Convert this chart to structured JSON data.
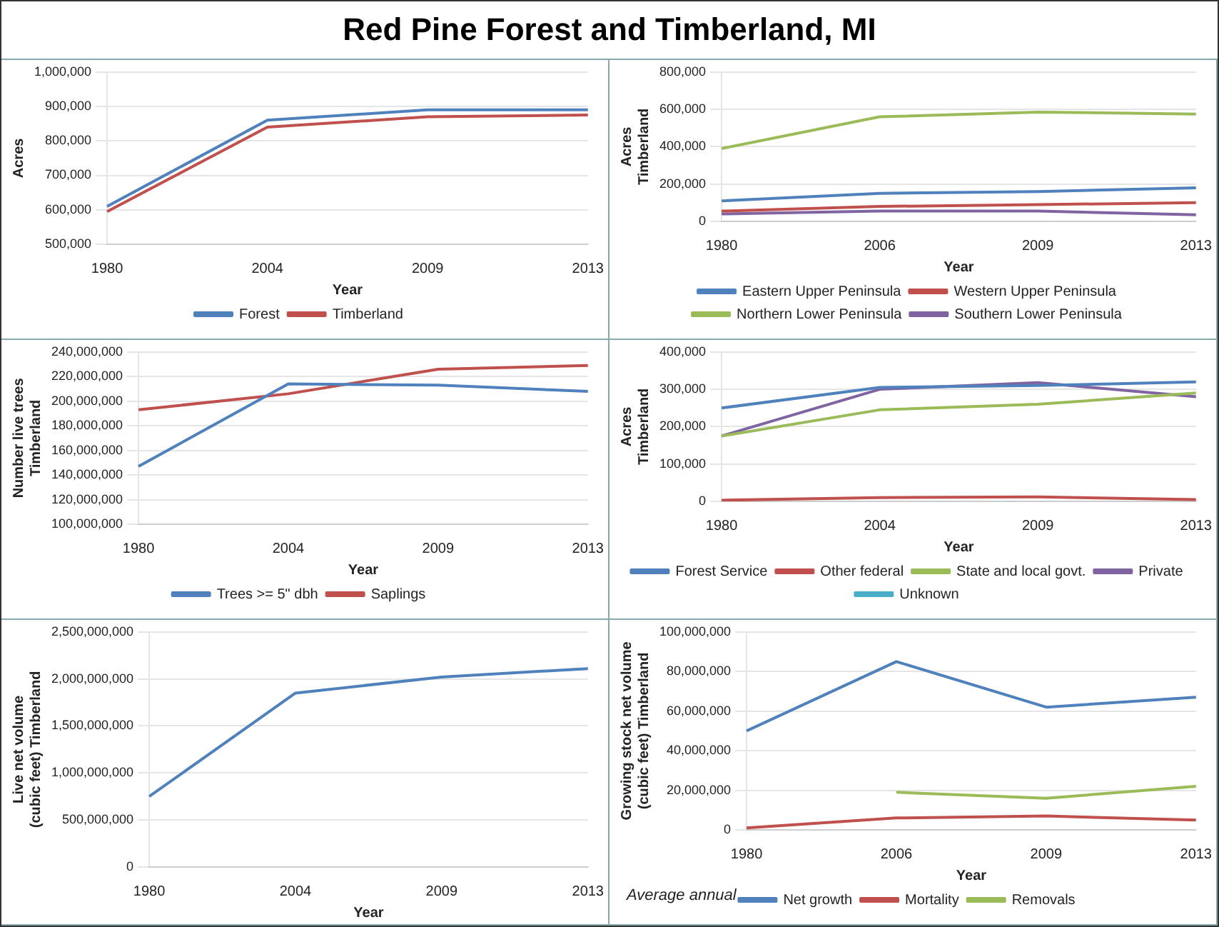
{
  "chart_data": [
    {
      "type": "line",
      "title": "Red Pine Forest and Timberland, MI",
      "categories": [
        "1980",
        "2004",
        "2009",
        "2013"
      ],
      "xlabel": "Year",
      "ylabel": "Acres",
      "ylim": [
        500000,
        1000000
      ],
      "yticks": [
        {
          "value": 500000,
          "label": "500,000"
        },
        {
          "value": 600000,
          "label": "600,000"
        },
        {
          "value": 700000,
          "label": "700,000"
        },
        {
          "value": 800000,
          "label": "800,000"
        },
        {
          "value": 900000,
          "label": "900,000"
        },
        {
          "value": 1000000,
          "label": "1,000,000"
        }
      ],
      "grid": "y",
      "legend": "bottom",
      "marker": "none",
      "series": [
        {
          "name": "Forest",
          "color": "#4f81bd",
          "values": [
            610000,
            860000,
            890000,
            890000
          ]
        },
        {
          "name": "Timberland",
          "color": "#c0504d",
          "values": [
            595000,
            840000,
            870000,
            875000
          ]
        }
      ]
    },
    {
      "type": "line",
      "categories": [
        "1980",
        "2006",
        "2009",
        "2013"
      ],
      "xlabel": "Year",
      "ylabel": "Acres\nTimberland",
      "ylim": [
        0,
        800000
      ],
      "yticks": [
        {
          "value": 0,
          "label": "0"
        },
        {
          "value": 200000,
          "label": "200,000"
        },
        {
          "value": 400000,
          "label": "400,000"
        },
        {
          "value": 600000,
          "label": "600,000"
        },
        {
          "value": 800000,
          "label": "800,000"
        }
      ],
      "grid": "y",
      "legend": "bottom",
      "marker": "none",
      "series": [
        {
          "name": "Eastern Upper Peninsula",
          "color": "#4f81bd",
          "values": [
            110000,
            150000,
            160000,
            180000
          ]
        },
        {
          "name": "Western Upper Peninsula",
          "color": "#c0504d",
          "values": [
            55000,
            80000,
            90000,
            100000
          ]
        },
        {
          "name": "Northern Lower Peninsula",
          "color": "#9bbb59",
          "values": [
            390000,
            560000,
            585000,
            575000
          ]
        },
        {
          "name": "Southern Lower Peninsula",
          "color": "#8064a2",
          "values": [
            40000,
            55000,
            55000,
            35000
          ]
        }
      ]
    },
    {
      "type": "line",
      "categories": [
        "1980",
        "2004",
        "2009",
        "2013"
      ],
      "xlabel": "Year",
      "ylabel": "Number live trees\nTimberland",
      "ylim": [
        100000000,
        240000000
      ],
      "yticks": [
        {
          "value": 100000000,
          "label": "100,000,000"
        },
        {
          "value": 120000000,
          "label": "120,000,000"
        },
        {
          "value": 140000000,
          "label": "140,000,000"
        },
        {
          "value": 160000000,
          "label": "160,000,000"
        },
        {
          "value": 180000000,
          "label": "180,000,000"
        },
        {
          "value": 200000000,
          "label": "200,000,000"
        },
        {
          "value": 220000000,
          "label": "220,000,000"
        },
        {
          "value": 240000000,
          "label": "240,000,000"
        }
      ],
      "grid": "y",
      "legend": "bottom",
      "marker": "none",
      "series": [
        {
          "name": "Trees >= 5\" dbh",
          "color": "#4f81bd",
          "values": [
            147000000,
            214000000,
            213000000,
            208000000
          ]
        },
        {
          "name": "Saplings",
          "color": "#c0504d",
          "values": [
            193000000,
            206000000,
            226000000,
            229000000
          ]
        }
      ]
    },
    {
      "type": "line",
      "categories": [
        "1980",
        "2004",
        "2009",
        "2013"
      ],
      "xlabel": "Year",
      "ylabel": "Acres\nTimberland",
      "ylim": [
        0,
        400000
      ],
      "yticks": [
        {
          "value": 0,
          "label": "0"
        },
        {
          "value": 100000,
          "label": "100,000"
        },
        {
          "value": 200000,
          "label": "200,000"
        },
        {
          "value": 300000,
          "label": "300,000"
        },
        {
          "value": 400000,
          "label": "400,000"
        }
      ],
      "grid": "y",
      "legend": "bottom",
      "marker": "none",
      "series": [
        {
          "name": "Forest Service",
          "color": "#4f81bd",
          "values": [
            250000,
            305000,
            310000,
            320000
          ]
        },
        {
          "name": "Other federal",
          "color": "#c0504d",
          "values": [
            3000,
            10000,
            12000,
            5000
          ]
        },
        {
          "name": "State and local govt.",
          "color": "#9bbb59",
          "values": [
            175000,
            245000,
            260000,
            290000
          ]
        },
        {
          "name": "Private",
          "color": "#8064a2",
          "values": [
            175000,
            300000,
            318000,
            280000
          ]
        },
        {
          "name": "Unknown",
          "color": "#4bacc6",
          "values": [
            null,
            null,
            null,
            null
          ]
        }
      ]
    },
    {
      "type": "line",
      "categories": [
        "1980",
        "2004",
        "2009",
        "2013"
      ],
      "xlabel": "Year",
      "ylabel": "Live net volume\n(cubic feet) Timberland",
      "ylim": [
        0,
        2500000000
      ],
      "yticks": [
        {
          "value": 0,
          "label": "0"
        },
        {
          "value": 500000000,
          "label": "500,000,000"
        },
        {
          "value": 1000000000,
          "label": "1,000,000,000"
        },
        {
          "value": 1500000000,
          "label": "1,500,000,000"
        },
        {
          "value": 2000000000,
          "label": "2,000,000,000"
        },
        {
          "value": 2500000000,
          "label": "2,500,000,000"
        }
      ],
      "grid": "y",
      "legend": false,
      "marker": "none",
      "series": [
        {
          "color": "#4f81bd",
          "values": [
            750000000,
            1850000000,
            2020000000,
            2110000000
          ]
        }
      ]
    },
    {
      "type": "line",
      "categories": [
        "1980",
        "2006",
        "2009",
        "2013"
      ],
      "xlabel": "Year",
      "ylabel": "Growing stock net volume\n(cubic feet) Timberland",
      "ylim": [
        0,
        100000000
      ],
      "yticks": [
        {
          "value": 0,
          "label": "0"
        },
        {
          "value": 20000000,
          "label": "20,000,000"
        },
        {
          "value": 40000000,
          "label": "40,000,000"
        },
        {
          "value": 60000000,
          "label": "60,000,000"
        },
        {
          "value": 80000000,
          "label": "80,000,000"
        },
        {
          "value": 100000000,
          "label": "100,000,000"
        }
      ],
      "grid": "y",
      "legend": "bottom",
      "marker": "none",
      "annotations": [
        "Average annual"
      ],
      "series": [
        {
          "name": "Net growth",
          "color": "#4f81bd",
          "values": [
            50000000,
            85000000,
            62000000,
            67000000
          ]
        },
        {
          "name": "Mortality",
          "color": "#c0504d",
          "values": [
            1000000,
            6000000,
            7000000,
            5000000
          ]
        },
        {
          "name": "Removals",
          "color": "#9bbb59",
          "values": [
            null,
            19000000,
            16000000,
            22000000
          ]
        }
      ]
    }
  ]
}
